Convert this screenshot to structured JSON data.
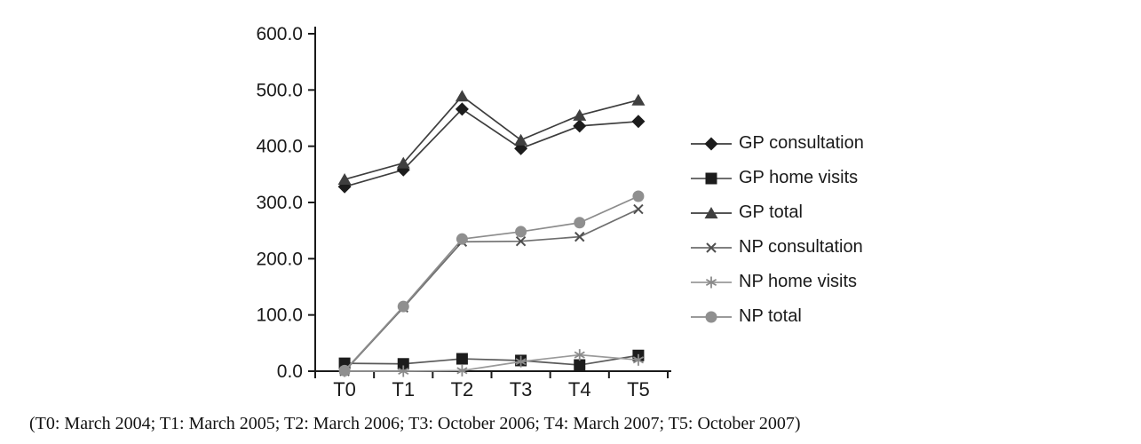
{
  "figure": {
    "footnote": "(T0: March 2004; T1: March 2005; T2: March 2006; T3: October 2006; T4: March 2007; T5: October 2007)"
  },
  "chart_data": {
    "type": "line",
    "title": "",
    "xlabel": "",
    "ylabel": "",
    "grid": false,
    "legend_position": "right",
    "x_categories": [
      "T0",
      "T1",
      "T2",
      "T3",
      "T4",
      "T5"
    ],
    "y_axis": {
      "min": 0,
      "max": 600,
      "step": 100,
      "tick_labels": [
        "0.0",
        "100.0",
        "200.0",
        "300.0",
        "400.0",
        "500.0",
        "600.0"
      ]
    },
    "series": [
      {
        "name": "GP consultation",
        "marker": "diamond",
        "color": "#1c1c1c",
        "line_color": "#3d3d3d",
        "values": [
          328,
          358,
          466,
          396,
          436,
          444
        ]
      },
      {
        "name": "GP home visits",
        "marker": "square",
        "color": "#1c1c1c",
        "line_color": "#5a5a5a",
        "values": [
          14,
          13,
          22,
          19,
          11,
          28
        ]
      },
      {
        "name": "GP total",
        "marker": "triangle",
        "color": "#3f3f3f",
        "line_color": "#3d3d3d",
        "values": [
          341,
          370,
          489,
          411,
          455,
          482
        ]
      },
      {
        "name": "NP consultation",
        "marker": "x",
        "color": "#4f4f4f",
        "line_color": "#6e6e6e",
        "values": [
          0,
          113,
          230,
          231,
          239,
          288
        ]
      },
      {
        "name": "NP home visits",
        "marker": "asterisk",
        "color": "#8a8a8a",
        "line_color": "#9a9a9a",
        "values": [
          0,
          0,
          1,
          17,
          29,
          20
        ]
      },
      {
        "name": "NP total",
        "marker": "circle",
        "color": "#8f8f8f",
        "line_color": "#8c8c8c",
        "values": [
          1,
          115,
          235,
          248,
          264,
          311
        ]
      }
    ],
    "colors": {
      "axis": "#1a1a1a",
      "text": "#1a1a1a"
    }
  }
}
